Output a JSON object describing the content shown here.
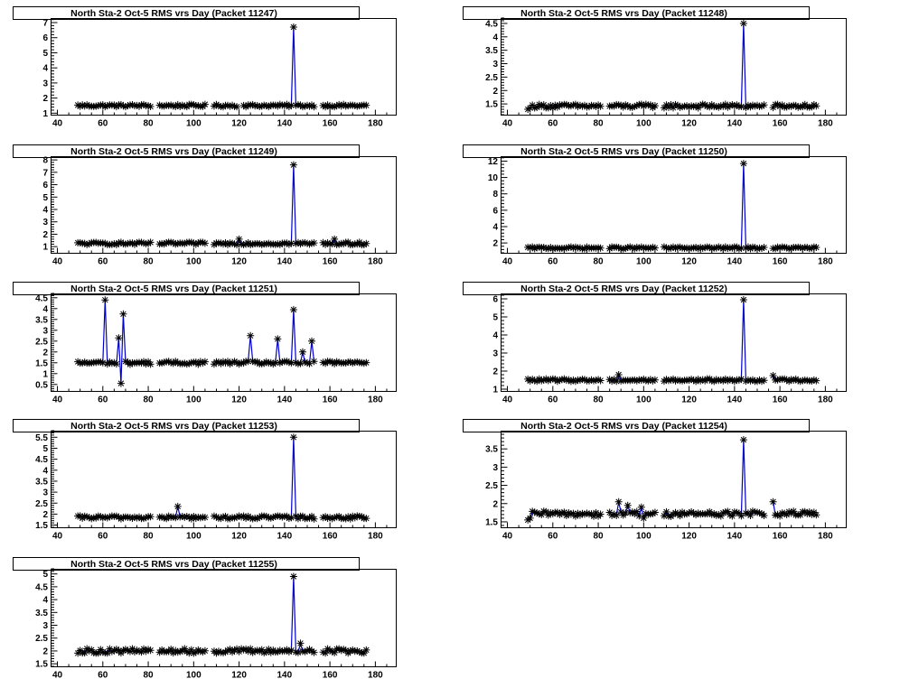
{
  "colors": {
    "line": "#0000cc",
    "marker": "#000000",
    "frame": "#000000",
    "background": "#ffffff"
  },
  "chart_data": [
    {
      "type": "line",
      "title": "North Sta-2 Oct-5 RMS vrs Day (Packet 11247)",
      "xlim": [
        37,
        189
      ],
      "ylim": [
        0.9,
        7.3
      ],
      "xticks": [
        40,
        60,
        80,
        100,
        120,
        140,
        160,
        180
      ],
      "yticks": [
        1,
        2,
        3,
        4,
        5,
        6,
        7
      ],
      "baseline": 1.5,
      "noise": 0.08,
      "spikes": [
        [
          144,
          6.7
        ]
      ],
      "outliers": [],
      "gaps": [
        [
          82,
          84
        ],
        [
          106,
          108
        ],
        [
          120,
          121
        ],
        [
          154,
          156
        ]
      ],
      "x_range": [
        49,
        176
      ]
    },
    {
      "type": "line",
      "title": "North Sta-2 Oct-5 RMS vrs Day (Packet 11248)",
      "xlim": [
        37,
        189
      ],
      "ylim": [
        1.1,
        4.7
      ],
      "xticks": [
        40,
        60,
        80,
        100,
        120,
        140,
        160,
        180
      ],
      "yticks": [
        1.5,
        2,
        2.5,
        3,
        3.5,
        4,
        4.5
      ],
      "baseline": 1.42,
      "noise": 0.07,
      "spikes": [
        [
          144,
          4.5
        ]
      ],
      "outliers": [
        [
          49,
          1.3
        ],
        [
          50,
          1.35
        ]
      ],
      "gaps": [
        [
          82,
          84
        ],
        [
          106,
          108
        ],
        [
          154,
          156
        ]
      ],
      "x_range": [
        49,
        176
      ]
    },
    {
      "type": "line",
      "title": "North Sta-2 Oct-5 RMS vrs Day (Packet 11249)",
      "xlim": [
        37,
        189
      ],
      "ylim": [
        0.5,
        8.3
      ],
      "xticks": [
        40,
        60,
        80,
        100,
        120,
        140,
        160,
        180
      ],
      "yticks": [
        1,
        2,
        3,
        4,
        5,
        6,
        7,
        8
      ],
      "baseline": 1.25,
      "noise": 0.1,
      "spikes": [
        [
          144,
          7.6
        ]
      ],
      "outliers": [
        [
          120,
          1.6
        ],
        [
          162,
          1.6
        ]
      ],
      "gaps": [
        [
          82,
          84
        ],
        [
          106,
          108
        ],
        [
          154,
          156
        ]
      ],
      "x_range": [
        49,
        176
      ]
    },
    {
      "type": "line",
      "title": "North Sta-2 Oct-5 RMS vrs Day (Packet 11250)",
      "xlim": [
        37,
        189
      ],
      "ylim": [
        0.8,
        12.6
      ],
      "xticks": [
        40,
        60,
        80,
        100,
        120,
        140,
        160,
        180
      ],
      "yticks": [
        2,
        4,
        6,
        8,
        10,
        12
      ],
      "baseline": 1.4,
      "noise": 0.12,
      "spikes": [
        [
          144,
          11.7
        ]
      ],
      "outliers": [],
      "gaps": [
        [
          82,
          84
        ],
        [
          106,
          108
        ],
        [
          154,
          156
        ]
      ],
      "x_range": [
        49,
        176
      ]
    },
    {
      "type": "line",
      "title": "North Sta-2 Oct-5 RMS vrs Day (Packet 11251)",
      "xlim": [
        37,
        189
      ],
      "ylim": [
        0.2,
        4.7
      ],
      "xticks": [
        40,
        60,
        80,
        100,
        120,
        140,
        160,
        180
      ],
      "yticks": [
        0.5,
        1,
        1.5,
        2,
        2.5,
        3,
        3.5,
        4,
        4.5
      ],
      "baseline": 1.5,
      "noise": 0.07,
      "spikes": [
        [
          61,
          4.4
        ],
        [
          67,
          2.65
        ],
        [
          68,
          0.55
        ],
        [
          69,
          3.75
        ],
        [
          125,
          2.75
        ],
        [
          137,
          2.6
        ],
        [
          144,
          3.95
        ],
        [
          148,
          2.0
        ],
        [
          152,
          2.5
        ]
      ],
      "outliers": [],
      "gaps": [
        [
          82,
          84
        ],
        [
          106,
          108
        ],
        [
          154,
          156
        ]
      ],
      "x_range": [
        49,
        176
      ]
    },
    {
      "type": "line",
      "title": "North Sta-2 Oct-5 RMS vrs Day (Packet 11252)",
      "xlim": [
        37,
        189
      ],
      "ylim": [
        0.9,
        6.3
      ],
      "xticks": [
        40,
        60,
        80,
        100,
        120,
        140,
        160,
        180
      ],
      "yticks": [
        1,
        2,
        3,
        4,
        5,
        6
      ],
      "baseline": 1.5,
      "noise": 0.07,
      "spikes": [
        [
          144,
          5.95
        ]
      ],
      "outliers": [
        [
          89,
          1.8
        ],
        [
          157,
          1.75
        ]
      ],
      "gaps": [
        [
          82,
          84
        ],
        [
          106,
          108
        ],
        [
          154,
          156
        ]
      ],
      "x_range": [
        49,
        176
      ]
    },
    {
      "type": "line",
      "title": "North Sta-2 Oct-5 RMS vrs Day (Packet 11253)",
      "xlim": [
        37,
        189
      ],
      "ylim": [
        1.4,
        5.8
      ],
      "xticks": [
        40,
        60,
        80,
        100,
        120,
        140,
        160,
        180
      ],
      "yticks": [
        1.5,
        2,
        2.5,
        3,
        3.5,
        4,
        4.5,
        5,
        5.5
      ],
      "baseline": 1.85,
      "noise": 0.07,
      "spikes": [
        [
          144,
          5.5
        ]
      ],
      "outliers": [
        [
          93,
          2.35
        ]
      ],
      "gaps": [
        [
          82,
          84
        ],
        [
          106,
          108
        ],
        [
          154,
          156
        ]
      ],
      "x_range": [
        49,
        176
      ]
    },
    {
      "type": "line",
      "title": "North Sta-2 Oct-5 RMS vrs Day (Packet 11254)",
      "xlim": [
        37,
        189
      ],
      "ylim": [
        1.35,
        4.0
      ],
      "xticks": [
        40,
        60,
        80,
        100,
        120,
        140,
        160,
        180
      ],
      "yticks": [
        1.5,
        2,
        2.5,
        3,
        3.5
      ],
      "baseline": 1.72,
      "noise": 0.07,
      "spikes": [
        [
          144,
          3.75
        ]
      ],
      "outliers": [
        [
          89,
          2.05
        ],
        [
          93,
          1.95
        ],
        [
          99,
          1.9
        ],
        [
          100,
          1.6
        ],
        [
          157,
          2.05
        ],
        [
          49,
          1.55
        ],
        [
          50,
          1.6
        ]
      ],
      "gaps": [
        [
          82,
          84
        ],
        [
          106,
          108
        ],
        [
          154,
          156
        ]
      ],
      "x_range": [
        49,
        176
      ]
    },
    {
      "type": "line",
      "title": "North Sta-2 Oct-5 RMS vrs Day (Packet 11255)",
      "xlim": [
        37,
        189
      ],
      "ylim": [
        1.4,
        5.2
      ],
      "xticks": [
        40,
        60,
        80,
        100,
        120,
        140,
        160,
        180
      ],
      "yticks": [
        1.5,
        2,
        2.5,
        3,
        3.5,
        4,
        4.5,
        5
      ],
      "baseline": 2.0,
      "noise": 0.09,
      "spikes": [
        [
          144,
          4.9
        ],
        [
          147,
          2.3
        ]
      ],
      "outliers": [],
      "gaps": [
        [
          82,
          84
        ],
        [
          106,
          108
        ],
        [
          154,
          156
        ]
      ],
      "x_range": [
        49,
        176
      ]
    }
  ]
}
